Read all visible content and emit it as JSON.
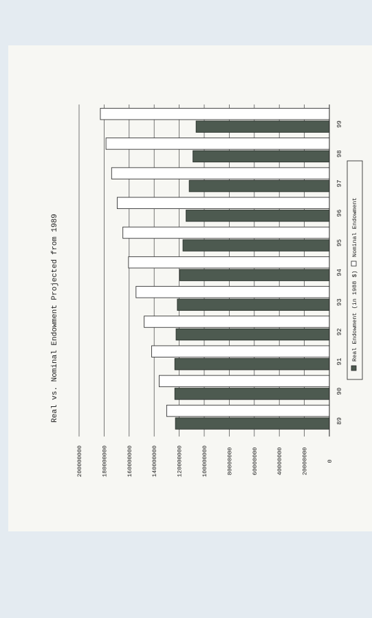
{
  "chart_data": {
    "type": "bar",
    "title": "Real vs. Nominal Endowment Projected from 1989",
    "categories": [
      "89",
      "90",
      "91",
      "92",
      "93",
      "94",
      "95",
      "96",
      "97",
      "98",
      "99"
    ],
    "series": [
      {
        "name": "Real Endowment (in 1988 $)",
        "values": [
          123000000,
          123500000,
          123500000,
          122500000,
          121500000,
          119500000,
          117000000,
          114500000,
          112000000,
          109000000,
          106500000
        ],
        "color": "#4d5a50"
      },
      {
        "name": "Nominal Endowment",
        "values": [
          130000000,
          136000000,
          142000000,
          148000000,
          154500000,
          160500000,
          165000000,
          169500000,
          174000000,
          178500000,
          183000000
        ],
        "color": "#ffffff"
      }
    ],
    "yticks": [
      "200000000",
      "180000000",
      "160000000",
      "140000000",
      "120000000",
      "100000000",
      "80000000",
      "60000000",
      "40000000",
      "20000000",
      "0"
    ],
    "ylim": [
      0,
      200000000
    ],
    "grid": true,
    "legend": "bottom",
    "orientation": "rotated"
  }
}
